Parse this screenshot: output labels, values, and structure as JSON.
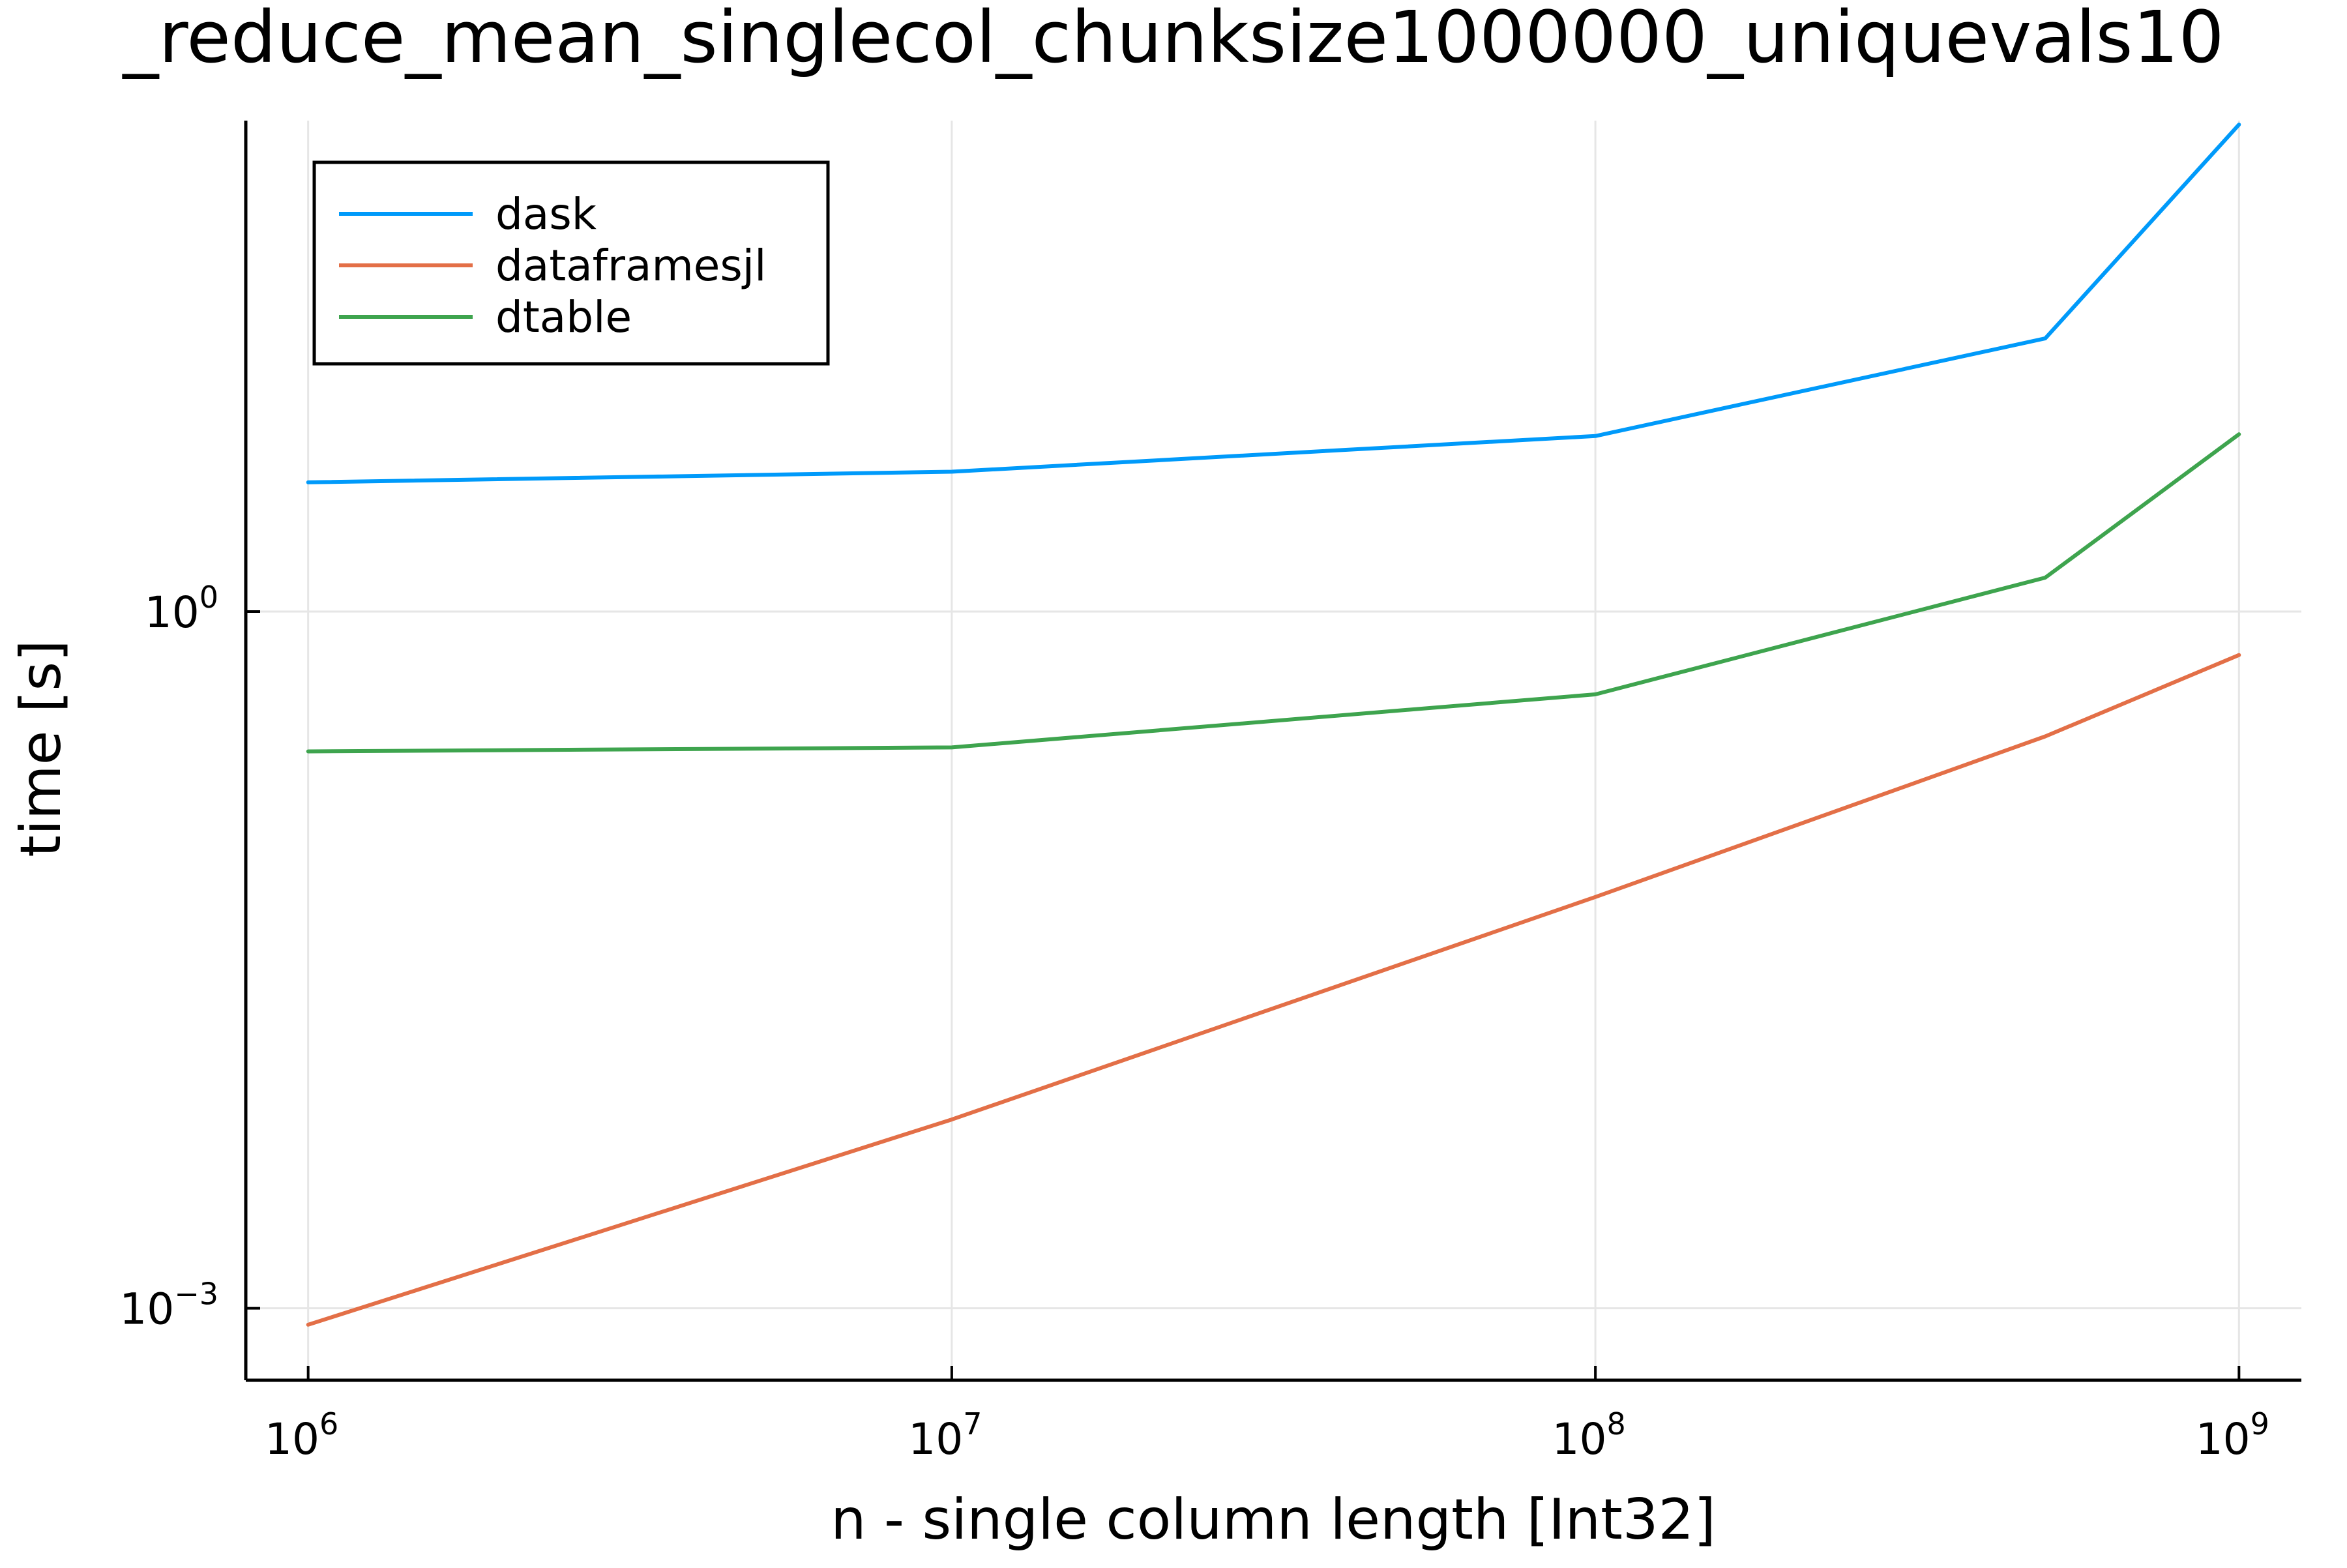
{
  "chart_data": {
    "type": "line",
    "title": "_reduce_mean_singlecol_chunksize1000000_uniquevals10",
    "xlabel": "n - single column length [Int32]",
    "ylabel": "time [s]",
    "xscale": "log10",
    "yscale": "log10",
    "xlim": [
      800000,
      1250000000
    ],
    "ylim": [
      0.00049,
      130
    ],
    "xticks": [
      {
        "value": 1000000,
        "base": "10",
        "exp": "6"
      },
      {
        "value": 10000000,
        "base": "10",
        "exp": "7"
      },
      {
        "value": 100000000,
        "base": "10",
        "exp": "8"
      },
      {
        "value": 1000000000,
        "base": "10",
        "exp": "9"
      }
    ],
    "yticks": [
      {
        "value": 1,
        "base": "10",
        "exp": "0"
      },
      {
        "value": 0.001,
        "base": "10",
        "exp": "−3"
      }
    ],
    "grid": true,
    "legend_position": "top-left",
    "x": [
      1000000,
      10000000,
      100000000,
      500000000,
      1000000000
    ],
    "series": [
      {
        "name": "dask",
        "color": "#009AFA",
        "values": [
          3.6,
          4.0,
          5.7,
          15.0,
          125
        ]
      },
      {
        "name": "dataframesjl",
        "color": "#E36F47",
        "values": [
          0.00085,
          0.0065,
          0.059,
          0.29,
          0.65
        ]
      },
      {
        "name": "dtable",
        "color": "#3EA44E",
        "values": [
          0.25,
          0.26,
          0.44,
          1.4,
          5.8
        ]
      }
    ]
  }
}
